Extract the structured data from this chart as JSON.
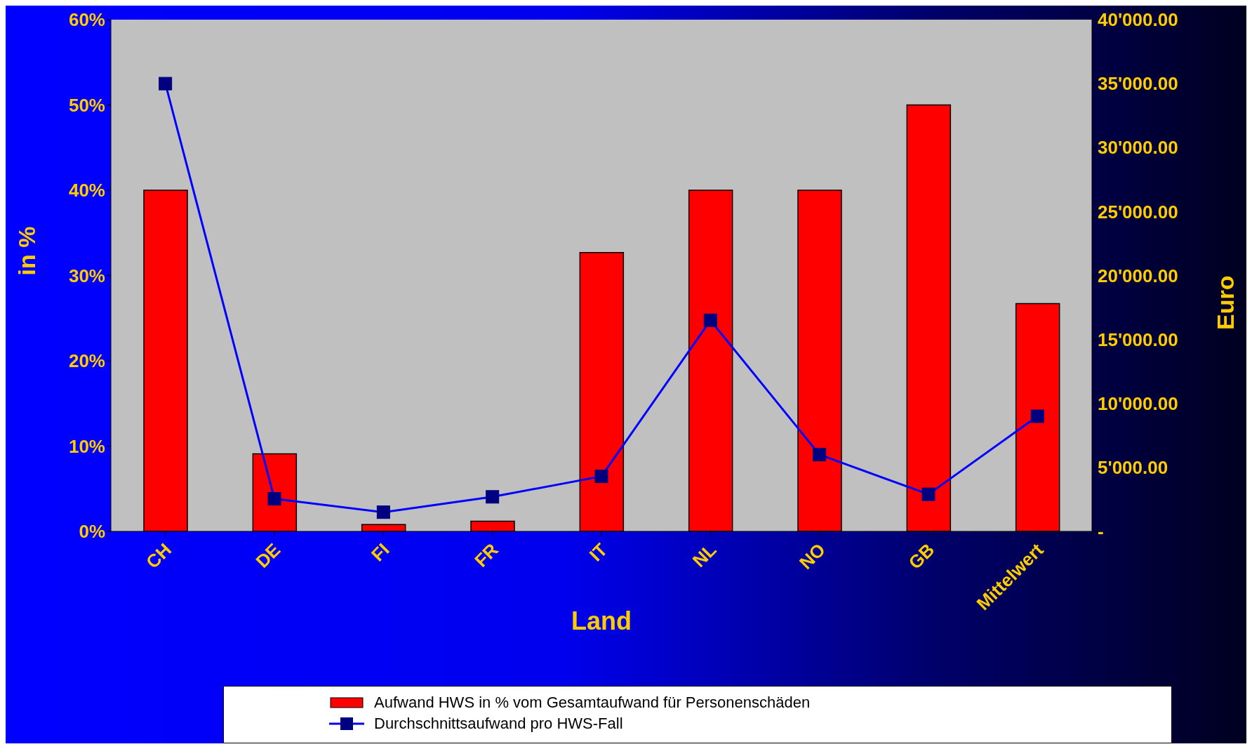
{
  "chart_data": {
    "type": "bar",
    "xlabel": "Land",
    "ylabel": "in %",
    "y2label": "Euro",
    "categories": [
      "CH",
      "DE",
      "FI",
      "FR",
      "IT",
      "NL",
      "NO",
      "GB",
      "Mittelwert"
    ],
    "series": [
      {
        "name": "Aufwand HWS in % vom Gesamtaufwand für Personenschäden",
        "color": "#ff0000",
        "values": [
          40,
          9.1,
          0.8,
          1.2,
          32.7,
          40,
          40,
          50,
          26.7
        ]
      },
      {
        "name": "Durchschnittsaufwand pro HWS-Fall",
        "type": "line",
        "axis": "y2",
        "color": "#0000ff",
        "marker": "square",
        "values": [
          35000,
          2550,
          1500,
          2700,
          4300,
          16500,
          6000,
          2900,
          9000
        ]
      }
    ],
    "ylim": [
      0,
      60
    ],
    "yticks": [
      {
        "value": 0,
        "label": "0%"
      },
      {
        "value": 10,
        "label": "10%"
      },
      {
        "value": 20,
        "label": "20%"
      },
      {
        "value": 30,
        "label": "30%"
      },
      {
        "value": 40,
        "label": "40%"
      },
      {
        "value": 50,
        "label": "50%"
      },
      {
        "value": 60,
        "label": "60%"
      }
    ],
    "y2lim": [
      0,
      40000
    ],
    "y2ticks": [
      {
        "value": 0,
        "label": "-"
      },
      {
        "value": 5000,
        "label": "5'000.00"
      },
      {
        "value": 10000,
        "label": "10'000.00"
      },
      {
        "value": 15000,
        "label": "15'000.00"
      },
      {
        "value": 20000,
        "label": "20'000.00"
      },
      {
        "value": 25000,
        "label": "25'000.00"
      },
      {
        "value": 30000,
        "label": "30'000.00"
      },
      {
        "value": 35000,
        "label": "35'000.00"
      },
      {
        "value": 40000,
        "label": "40'000.00"
      }
    ],
    "grid": false,
    "legend": "bottom"
  }
}
